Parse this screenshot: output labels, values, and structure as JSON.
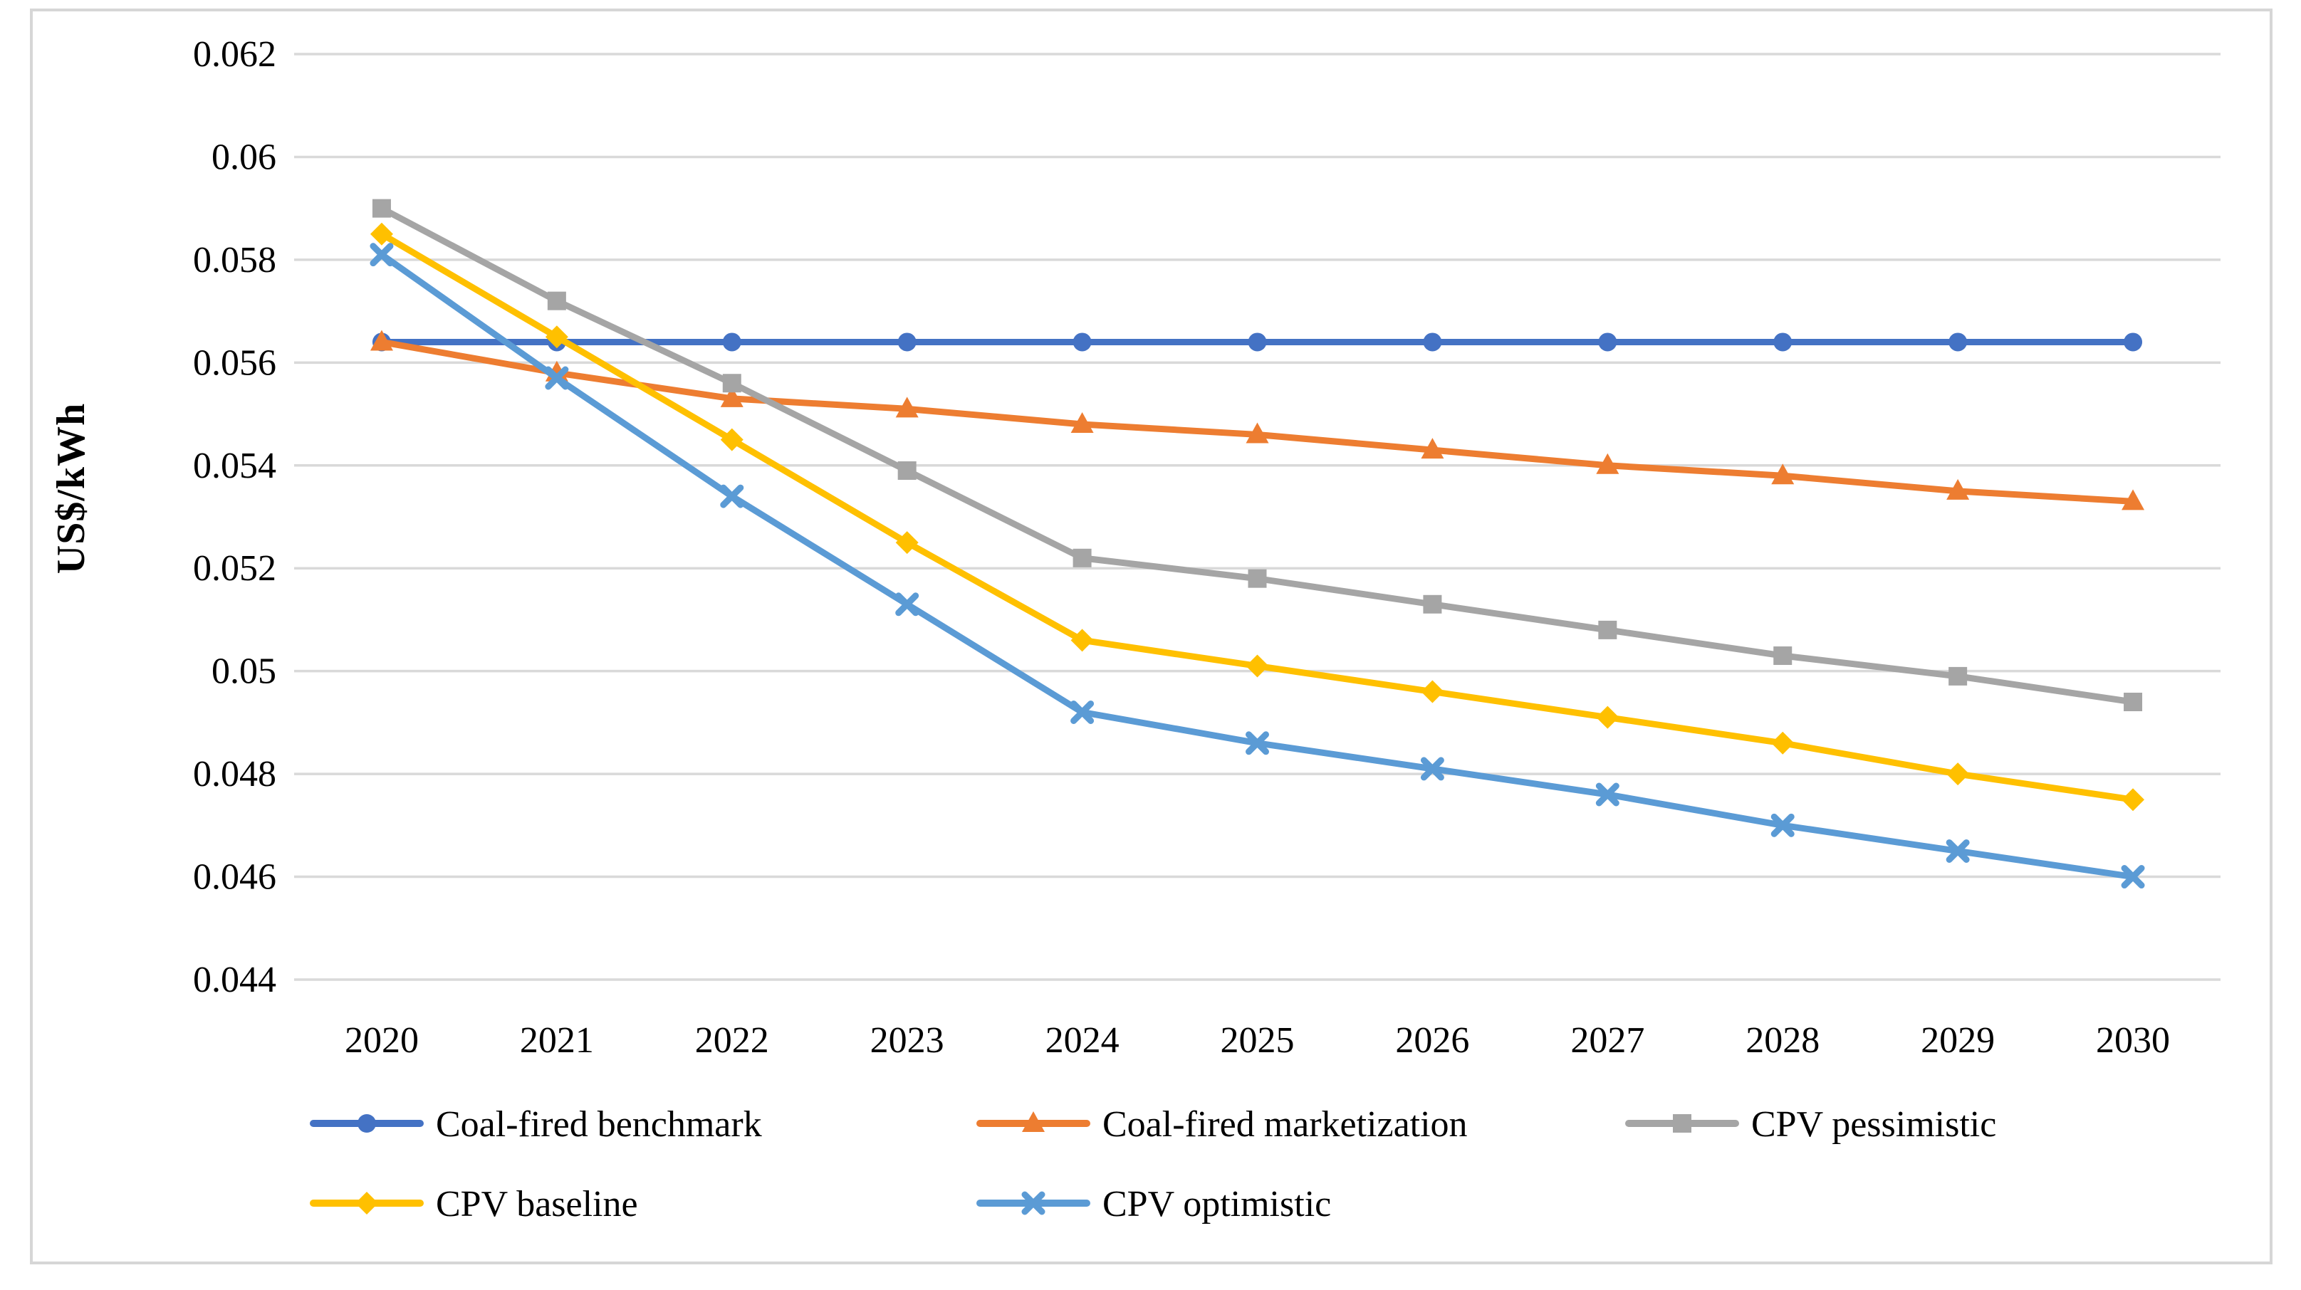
{
  "figure": {
    "kind": "line-chart-figure",
    "background": "#ffffff",
    "frame_border_color": "#d6d6d6",
    "gridline_color": "#d9d9d9",
    "text_color": "#000000"
  },
  "chart_data": {
    "type": "line",
    "title": "",
    "xlabel": "",
    "ylabel": "US$/kWh",
    "x_categories": [
      "2020",
      "2021",
      "2022",
      "2023",
      "2024",
      "2025",
      "2026",
      "2027",
      "2028",
      "2029",
      "2030"
    ],
    "yticks": [
      "0.062",
      "0.06",
      "0.058",
      "0.056",
      "0.054",
      "0.052",
      "0.05",
      "0.048",
      "0.046",
      "0.044"
    ],
    "ylim": [
      0.044,
      0.062
    ],
    "ytick_step": 0.002,
    "grid": "horizontal-only",
    "legend_position": "bottom",
    "series": [
      {
        "name": "Coal-fired benchmark",
        "slug": "coal-fired-benchmark",
        "marker": "circle",
        "color": "#4472C4",
        "values": [
          0.0564,
          0.0564,
          0.0564,
          0.0564,
          0.0564,
          0.0564,
          0.0564,
          0.0564,
          0.0564,
          0.0564,
          0.0564
        ]
      },
      {
        "name": "Coal-fired marketization",
        "slug": "coal-fired-marketization",
        "marker": "triangle",
        "color": "#ED7D31",
        "values": [
          0.0564,
          0.0558,
          0.0553,
          0.0551,
          0.0548,
          0.0546,
          0.0543,
          0.054,
          0.0538,
          0.0535,
          0.0533
        ]
      },
      {
        "name": "CPV pessimistic",
        "slug": "cpv-pessimistic",
        "marker": "square",
        "color": "#A5A5A5",
        "values": [
          0.059,
          0.0572,
          0.0556,
          0.0539,
          0.0522,
          0.0518,
          0.0513,
          0.0508,
          0.0503,
          0.0499,
          0.0494
        ]
      },
      {
        "name": "CPV baseline",
        "slug": "cpv-baseline",
        "marker": "diamond",
        "color": "#FFC000",
        "values": [
          0.0585,
          0.0565,
          0.0545,
          0.0525,
          0.0506,
          0.0501,
          0.0496,
          0.0491,
          0.0486,
          0.048,
          0.0475
        ]
      },
      {
        "name": "CPV optimistic",
        "slug": "cpv-optimistic",
        "marker": "x",
        "color": "#5B9BD5",
        "values": [
          0.0581,
          0.0557,
          0.0534,
          0.0513,
          0.0492,
          0.0486,
          0.0481,
          0.0476,
          0.047,
          0.0465,
          0.046
        ]
      }
    ]
  }
}
